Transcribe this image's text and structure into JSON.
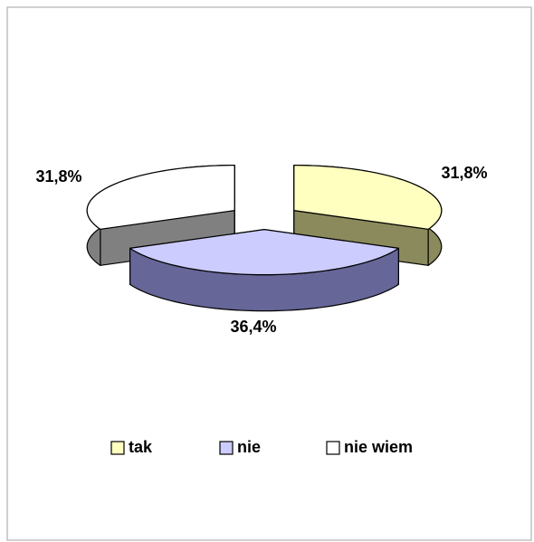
{
  "chart_data": {
    "type": "pie3d",
    "categories": [
      "tak",
      "nie",
      "nie wiem"
    ],
    "values": [
      31.8,
      36.4,
      31.8
    ],
    "value_labels": [
      "31,8%",
      "36,4%",
      "31,8%"
    ],
    "colors": [
      "#ffffc0",
      "#ccccff",
      "#ffffff"
    ],
    "side_colors": [
      "#8a8a5c",
      "#666699",
      "#808080"
    ],
    "legend": "bottom"
  }
}
